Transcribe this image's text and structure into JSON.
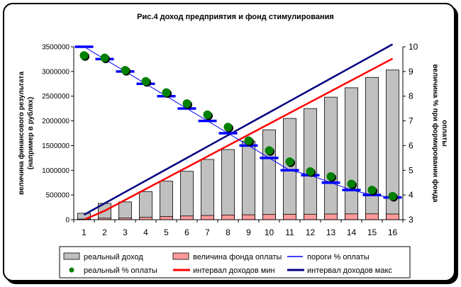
{
  "chart_data": {
    "type": "bar",
    "title": "Рис.4 доход предприятия и фонд стимулирования",
    "categories": [
      "1",
      "2",
      "3",
      "4",
      "5",
      "6",
      "7",
      "8",
      "9",
      "10",
      "11",
      "12",
      "13",
      "14",
      "15",
      "16"
    ],
    "ylabel_left_line1": "величина финансового результата",
    "ylabel_left_line2": "(например в рублях)",
    "ylabel_right_line1": "величина % при формировании фонда",
    "ylabel_right_line2": "оплаты",
    "ylim_left": [
      0,
      3500000
    ],
    "ylim_right": [
      3,
      10
    ],
    "yticks_left": [
      "0",
      "500000",
      "1000000",
      "1500000",
      "2000000",
      "2500000",
      "3000000",
      "3500000"
    ],
    "yticks_right": [
      "3",
      "4",
      "5",
      "6",
      "7",
      "8",
      "9",
      "10"
    ],
    "series": [
      {
        "name": "реальный доход",
        "type": "bar",
        "axis": "left",
        "values": [
          130000,
          330000,
          360000,
          570000,
          780000,
          980000,
          1220000,
          1420000,
          1590000,
          1820000,
          2050000,
          2250000,
          2480000,
          2670000,
          2880000,
          3030000
        ]
      },
      {
        "name": "величина фонда оплаты",
        "type": "bar",
        "axis": "left",
        "values": [
          12000,
          31000,
          33000,
          48000,
          62000,
          75000,
          85000,
          95000,
          99000,
          105000,
          110000,
          111000,
          115000,
          117000,
          118000,
          115000
        ]
      },
      {
        "name": "пороги % оплаты",
        "type": "dash",
        "axis": "right",
        "values": [
          10,
          9.5,
          9.0,
          8.5,
          8.0,
          7.5,
          7.0,
          6.5,
          6.0,
          5.5,
          5.0,
          4.8,
          4.5,
          4.2,
          4.0,
          3.9
        ]
      },
      {
        "name": "реальный % оплаты",
        "type": "scatter",
        "axis": "right",
        "values": [
          9.65,
          9.55,
          9.05,
          8.6,
          8.15,
          7.7,
          7.25,
          6.75,
          6.2,
          5.8,
          5.35,
          4.95,
          4.75,
          4.45,
          4.2,
          3.95
        ]
      },
      {
        "name": "интервал доходов мин",
        "type": "line",
        "axis": "left",
        "values": [
          0,
          180000,
          400000,
          620000,
          840000,
          1060000,
          1280000,
          1500000,
          1720000,
          1940000,
          2160000,
          2380000,
          2600000,
          2820000,
          3040000,
          3260000
        ]
      },
      {
        "name": "интервал доходов макс",
        "type": "line",
        "axis": "left",
        "values": [
          100000,
          330000,
          560000,
          790000,
          1020000,
          1250000,
          1480000,
          1710000,
          1940000,
          2170000,
          2400000,
          2630000,
          2860000,
          3090000,
          3320000,
          3550000
        ]
      }
    ],
    "colors": {
      "bar_income": "#c0c0c0",
      "bar_fund": "#ff9999",
      "threshold": "#0000ff",
      "real_pct": "#008000",
      "min_line": "#ff0000",
      "max_line": "#000080"
    },
    "legend_placement": "bottom",
    "grid": false
  }
}
